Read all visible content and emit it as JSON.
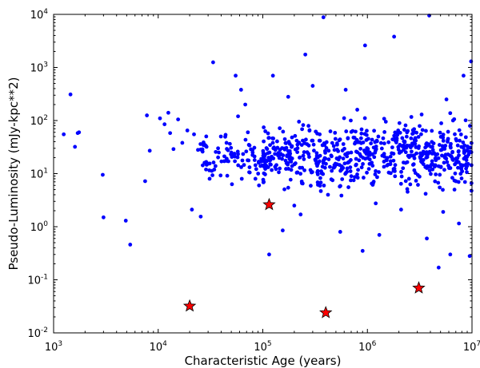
{
  "chart_data": {
    "type": "scatter",
    "xlabel": "Characteristic Age (years)",
    "ylabel": "Pseudo-Luminosity (mJy-kpc**2)",
    "xscale": "log",
    "yscale": "log",
    "xlim": [
      1000,
      10000000
    ],
    "ylim": [
      0.01,
      10000
    ],
    "grid": false,
    "x_ticks": [
      {
        "value": 1000,
        "base": "10",
        "exp": "3"
      },
      {
        "value": 10000,
        "base": "10",
        "exp": "4"
      },
      {
        "value": 100000,
        "base": "10",
        "exp": "5"
      },
      {
        "value": 1000000,
        "base": "10",
        "exp": "6"
      },
      {
        "value": 10000000,
        "base": "10",
        "exp": "7"
      }
    ],
    "y_ticks": [
      {
        "value": 0.01,
        "base": "10",
        "exp": "-2"
      },
      {
        "value": 0.1,
        "base": "10",
        "exp": "-1"
      },
      {
        "value": 1,
        "base": "10",
        "exp": "0"
      },
      {
        "value": 10,
        "base": "10",
        "exp": "1"
      },
      {
        "value": 100,
        "base": "10",
        "exp": "2"
      },
      {
        "value": 1000,
        "base": "10",
        "exp": "3"
      },
      {
        "value": 10000,
        "base": "10",
        "exp": "4"
      }
    ],
    "series": [
      {
        "marker": "circle",
        "color": "#0000ff",
        "points": [
          [
            1250,
            55
          ],
          [
            1450,
            310
          ],
          [
            1600,
            32
          ],
          [
            1700,
            58
          ],
          [
            1750,
            60
          ],
          [
            2950,
            9.5
          ],
          [
            3000,
            1.5
          ],
          [
            4900,
            1.3
          ],
          [
            5400,
            0.46
          ],
          [
            7500,
            7.2
          ],
          [
            7800,
            125
          ],
          [
            8300,
            27
          ],
          [
            10400,
            110
          ],
          [
            11500,
            85
          ],
          [
            12500,
            140
          ],
          [
            13000,
            58
          ],
          [
            14000,
            29
          ],
          [
            15500,
            105
          ],
          [
            17000,
            38
          ],
          [
            19000,
            65
          ],
          [
            21000,
            2.1
          ],
          [
            22000,
            55
          ],
          [
            24000,
            28
          ],
          [
            25500,
            1.55
          ],
          [
            29000,
            32
          ],
          [
            31000,
            8
          ],
          [
            33500,
            1250
          ],
          [
            38000,
            25
          ],
          [
            45000,
            38
          ],
          [
            50000,
            25
          ],
          [
            55000,
            700
          ],
          [
            58000,
            120
          ],
          [
            62000,
            380
          ],
          [
            68000,
            200
          ],
          [
            72000,
            60
          ],
          [
            80000,
            25
          ],
          [
            85000,
            8
          ],
          [
            92000,
            6
          ],
          [
            100000,
            19
          ],
          [
            108000,
            13
          ],
          [
            115000,
            0.3
          ],
          [
            125000,
            700
          ],
          [
            140000,
            22
          ],
          [
            155000,
            0.85
          ],
          [
            175000,
            280
          ],
          [
            200000,
            2.5
          ],
          [
            230000,
            1.7
          ],
          [
            255000,
            1750
          ],
          [
            300000,
            450
          ],
          [
            350000,
            55
          ],
          [
            380000,
            8800
          ],
          [
            420000,
            4
          ],
          [
            480000,
            13
          ],
          [
            550000,
            0.8
          ],
          [
            620000,
            380
          ],
          [
            700000,
            25
          ],
          [
            800000,
            160
          ],
          [
            900000,
            0.35
          ],
          [
            950000,
            2600
          ],
          [
            1100000,
            6.5
          ],
          [
            1300000,
            0.7
          ],
          [
            1500000,
            95
          ],
          [
            1800000,
            3800
          ],
          [
            2100000,
            2.1
          ],
          [
            2500000,
            8
          ],
          [
            2900000,
            42
          ],
          [
            3300000,
            130
          ],
          [
            3700000,
            0.6
          ],
          [
            3900000,
            9500
          ],
          [
            4200000,
            12
          ],
          [
            4800000,
            0.17
          ],
          [
            5300000,
            1.9
          ],
          [
            5700000,
            250
          ],
          [
            6200000,
            0.3
          ],
          [
            6800000,
            5
          ],
          [
            7500000,
            1.15
          ],
          [
            8300000,
            700
          ],
          [
            9000000,
            14
          ],
          [
            9500000,
            0.28
          ],
          [
            9800000,
            1300
          ]
        ]
      },
      {
        "marker": "star",
        "color": "#ff0000",
        "points": [
          [
            20000,
            0.032
          ],
          [
            115000,
            2.6
          ],
          [
            400000,
            0.024
          ],
          [
            3100000,
            0.07
          ]
        ]
      }
    ]
  }
}
